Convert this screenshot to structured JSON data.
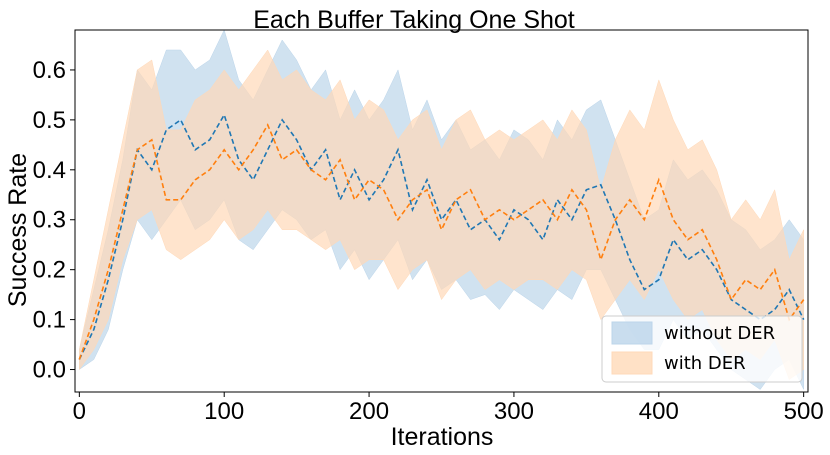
{
  "chart_data": {
    "type": "line",
    "title": "Each Buffer Taking One Shot",
    "xlabel": "Iterations",
    "ylabel": "Success Rate",
    "xlim": [
      -3,
      503
    ],
    "ylim": [
      -0.045,
      0.68
    ],
    "xticks": [
      0,
      100,
      200,
      300,
      400,
      500
    ],
    "yticks": [
      0.0,
      0.1,
      0.2,
      0.3,
      0.4,
      0.5,
      0.6
    ],
    "xtick_labels": [
      "0",
      "100",
      "200",
      "300",
      "400",
      "500"
    ],
    "ytick_labels": [
      "0.0",
      "0.1",
      "0.2",
      "0.3",
      "0.4",
      "0.5",
      "0.6"
    ],
    "grid": false,
    "legend_position": "lower-right",
    "x": [
      0,
      10,
      20,
      30,
      40,
      50,
      60,
      70,
      80,
      90,
      100,
      110,
      120,
      130,
      140,
      150,
      160,
      170,
      180,
      190,
      200,
      210,
      220,
      230,
      240,
      250,
      260,
      270,
      280,
      290,
      300,
      310,
      320,
      330,
      340,
      350,
      360,
      370,
      380,
      390,
      400,
      410,
      420,
      430,
      440,
      450,
      460,
      470,
      480,
      490,
      500
    ],
    "series": [
      {
        "name": "without DER",
        "color": "#1f77b4",
        "fill_color": "#bcd5ea",
        "mean": [
          0.02,
          0.08,
          0.18,
          0.3,
          0.44,
          0.4,
          0.48,
          0.5,
          0.44,
          0.46,
          0.51,
          0.42,
          0.38,
          0.44,
          0.5,
          0.46,
          0.4,
          0.44,
          0.34,
          0.4,
          0.34,
          0.38,
          0.44,
          0.32,
          0.38,
          0.3,
          0.34,
          0.28,
          0.3,
          0.26,
          0.32,
          0.3,
          0.26,
          0.34,
          0.3,
          0.36,
          0.37,
          0.3,
          0.22,
          0.16,
          0.18,
          0.26,
          0.22,
          0.24,
          0.2,
          0.14,
          0.12,
          0.1,
          0.12,
          0.16,
          0.1
        ],
        "lower": [
          0.0,
          0.02,
          0.08,
          0.2,
          0.3,
          0.26,
          0.3,
          0.34,
          0.28,
          0.3,
          0.34,
          0.26,
          0.24,
          0.28,
          0.32,
          0.3,
          0.26,
          0.28,
          0.2,
          0.24,
          0.18,
          0.22,
          0.26,
          0.18,
          0.22,
          0.16,
          0.18,
          0.14,
          0.15,
          0.12,
          0.16,
          0.14,
          0.12,
          0.16,
          0.14,
          0.2,
          0.2,
          0.14,
          0.08,
          0.04,
          0.04,
          0.1,
          0.06,
          0.08,
          0.04,
          0.0,
          -0.02,
          -0.04,
          0.0,
          0.02,
          -0.04
        ],
        "upper": [
          0.04,
          0.16,
          0.28,
          0.42,
          0.6,
          0.56,
          0.64,
          0.64,
          0.6,
          0.62,
          0.68,
          0.58,
          0.54,
          0.6,
          0.66,
          0.62,
          0.56,
          0.6,
          0.5,
          0.56,
          0.5,
          0.54,
          0.6,
          0.48,
          0.54,
          0.46,
          0.5,
          0.44,
          0.46,
          0.42,
          0.48,
          0.46,
          0.42,
          0.5,
          0.46,
          0.52,
          0.54,
          0.46,
          0.38,
          0.3,
          0.32,
          0.42,
          0.38,
          0.4,
          0.36,
          0.3,
          0.28,
          0.24,
          0.26,
          0.3,
          0.26
        ]
      },
      {
        "name": "with DER",
        "color": "#ff7f0e",
        "fill_color": "#ffd9b8",
        "mean": [
          0.02,
          0.1,
          0.2,
          0.32,
          0.44,
          0.46,
          0.34,
          0.34,
          0.38,
          0.4,
          0.44,
          0.4,
          0.44,
          0.49,
          0.42,
          0.44,
          0.4,
          0.38,
          0.42,
          0.34,
          0.38,
          0.36,
          0.3,
          0.34,
          0.36,
          0.28,
          0.34,
          0.36,
          0.3,
          0.32,
          0.3,
          0.32,
          0.34,
          0.3,
          0.36,
          0.32,
          0.22,
          0.3,
          0.34,
          0.3,
          0.38,
          0.3,
          0.26,
          0.28,
          0.22,
          0.14,
          0.18,
          0.16,
          0.2,
          0.1,
          0.14
        ],
        "lower": [
          0.0,
          0.04,
          0.1,
          0.22,
          0.3,
          0.32,
          0.24,
          0.22,
          0.24,
          0.26,
          0.3,
          0.26,
          0.28,
          0.32,
          0.28,
          0.28,
          0.26,
          0.24,
          0.26,
          0.2,
          0.22,
          0.22,
          0.16,
          0.2,
          0.22,
          0.14,
          0.18,
          0.2,
          0.16,
          0.18,
          0.16,
          0.18,
          0.18,
          0.16,
          0.2,
          0.18,
          0.1,
          0.14,
          0.18,
          0.14,
          0.2,
          0.14,
          0.1,
          0.12,
          0.06,
          0.02,
          0.04,
          0.02,
          0.06,
          -0.02,
          0.0
        ],
        "upper": [
          0.04,
          0.18,
          0.32,
          0.46,
          0.6,
          0.62,
          0.48,
          0.48,
          0.54,
          0.56,
          0.6,
          0.56,
          0.6,
          0.64,
          0.58,
          0.6,
          0.56,
          0.54,
          0.58,
          0.5,
          0.54,
          0.52,
          0.46,
          0.5,
          0.52,
          0.44,
          0.5,
          0.52,
          0.46,
          0.48,
          0.46,
          0.48,
          0.5,
          0.46,
          0.52,
          0.48,
          0.36,
          0.46,
          0.52,
          0.48,
          0.58,
          0.5,
          0.44,
          0.46,
          0.4,
          0.3,
          0.34,
          0.3,
          0.36,
          0.22,
          0.28
        ]
      }
    ]
  }
}
